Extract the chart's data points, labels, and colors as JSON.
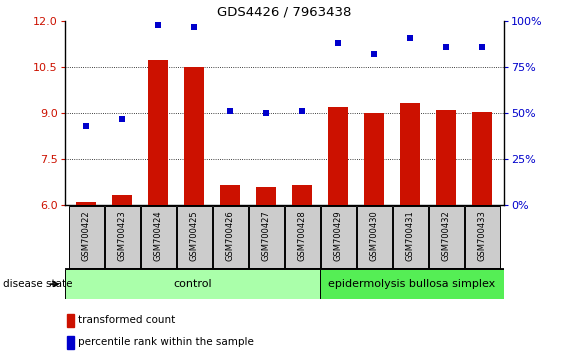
{
  "title": "GDS4426 / 7963438",
  "samples": [
    "GSM700422",
    "GSM700423",
    "GSM700424",
    "GSM700425",
    "GSM700426",
    "GSM700427",
    "GSM700428",
    "GSM700429",
    "GSM700430",
    "GSM700431",
    "GSM700432",
    "GSM700433"
  ],
  "transformed_count": [
    6.1,
    6.35,
    10.75,
    10.52,
    6.65,
    6.6,
    6.65,
    9.2,
    9.0,
    9.35,
    9.1,
    9.05
  ],
  "percentile_rank": [
    43,
    47,
    98,
    97,
    51,
    50,
    51,
    88,
    82,
    91,
    86,
    86
  ],
  "bar_color": "#cc1100",
  "dot_color": "#0000cc",
  "ylim_left": [
    6,
    12
  ],
  "ylim_right": [
    0,
    100
  ],
  "yticks_left": [
    6,
    7.5,
    9,
    10.5,
    12
  ],
  "yticks_right": [
    0,
    25,
    50,
    75,
    100
  ],
  "ytick_labels_right": [
    "0%",
    "25%",
    "50%",
    "75%",
    "100%"
  ],
  "control_samples": 7,
  "group1_label": "control",
  "group2_label": "epidermolysis bullosa simplex",
  "group1_color": "#aaffaa",
  "group2_color": "#55ee55",
  "disease_state_label": "disease state",
  "legend_bar_label": "transformed count",
  "legend_dot_label": "percentile rank within the sample",
  "bar_width": 0.55,
  "background_color": "#ffffff",
  "tick_box_color": "#cccccc"
}
